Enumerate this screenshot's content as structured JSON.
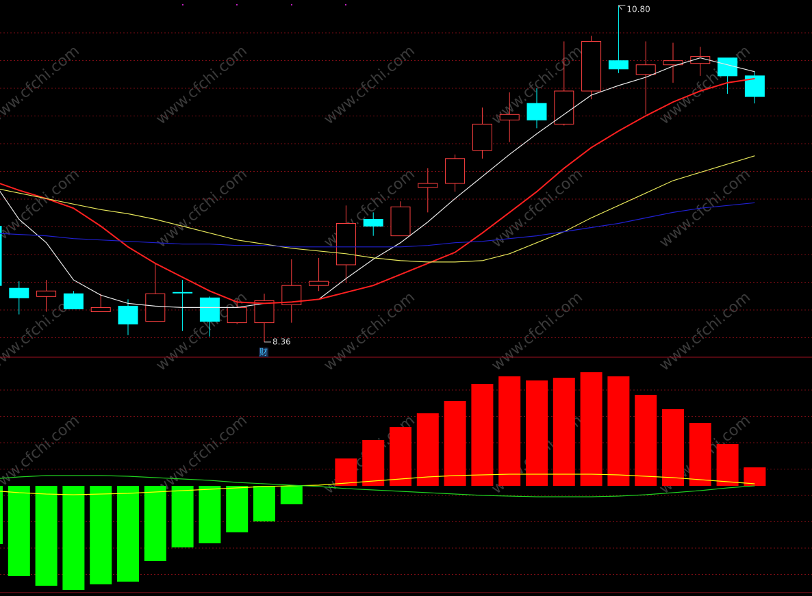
{
  "watermark": "www.cfchi.com",
  "chart_data": [
    {
      "type": "candlestick",
      "ylim": [
        8.25,
        10.84
      ],
      "grid": true,
      "up_color": "#ff4040",
      "down_color": "#00ffff",
      "open": [
        9.2,
        8.75,
        8.69,
        8.71,
        8.58,
        8.62,
        8.51,
        8.72,
        8.68,
        8.5,
        8.5,
        8.63,
        8.77,
        8.92,
        9.25,
        9.13,
        9.48,
        9.51,
        9.75,
        9.97,
        10.09,
        9.94,
        10.18,
        10.4,
        10.3,
        10.37,
        10.38,
        10.42,
        10.29
      ],
      "high": [
        9.25,
        8.8,
        8.81,
        8.73,
        8.71,
        8.67,
        8.93,
        8.81,
        8.69,
        8.67,
        8.71,
        8.96,
        8.97,
        9.35,
        9.3,
        9.38,
        9.62,
        9.72,
        10.06,
        10.17,
        10.2,
        10.54,
        10.58,
        10.8,
        10.54,
        10.53,
        10.5,
        10.42,
        10.32
      ],
      "low": [
        8.77,
        8.56,
        8.58,
        8.6,
        8.58,
        8.41,
        8.51,
        8.44,
        8.4,
        8.49,
        8.36,
        8.5,
        8.73,
        8.79,
        9.13,
        9.13,
        9.3,
        9.45,
        9.69,
        9.81,
        9.91,
        9.93,
        10.12,
        10.31,
        10.01,
        10.24,
        10.29,
        10.16,
        10.09
      ],
      "close": [
        8.77,
        8.68,
        8.73,
        8.6,
        8.61,
        8.49,
        8.71,
        8.72,
        8.51,
        8.61,
        8.66,
        8.77,
        8.8,
        9.22,
        9.2,
        9.34,
        9.51,
        9.69,
        9.94,
        10.01,
        9.97,
        10.18,
        10.54,
        10.34,
        10.37,
        10.4,
        10.43,
        10.29,
        10.14
      ],
      "series": [
        {
          "color": "#e8e8e8",
          "values": [
            9.54,
            9.25,
            9.08,
            8.81,
            8.7,
            8.64,
            8.62,
            8.61,
            8.61,
            8.61,
            8.64,
            8.65,
            8.67,
            8.82,
            8.96,
            9.08,
            9.23,
            9.4,
            9.56,
            9.72,
            9.87,
            10.01,
            10.15,
            10.22,
            10.28,
            10.36,
            10.42,
            10.37,
            10.32
          ]
        },
        {
          "color": "#ff2020",
          "values": [
            9.53,
            9.46,
            9.4,
            9.33,
            9.2,
            9.05,
            8.93,
            8.83,
            8.73,
            8.65,
            8.64,
            8.65,
            8.67,
            8.72,
            8.77,
            8.85,
            8.93,
            9.01,
            9.15,
            9.3,
            9.45,
            9.62,
            9.77,
            9.89,
            10.0,
            10.1,
            10.18,
            10.24,
            10.27
          ]
        },
        {
          "color": "#e6e65a",
          "values": [
            9.48,
            9.44,
            9.4,
            9.36,
            9.32,
            9.29,
            9.25,
            9.2,
            9.15,
            9.1,
            9.07,
            9.04,
            9.02,
            9.0,
            8.97,
            8.95,
            8.94,
            8.94,
            8.95,
            9.0,
            9.08,
            9.16,
            9.26,
            9.35,
            9.44,
            9.53,
            9.59,
            9.65,
            9.71
          ]
        },
        {
          "color": "#2020d0",
          "values": [
            9.15,
            9.14,
            9.13,
            9.11,
            9.1,
            9.09,
            9.08,
            9.07,
            9.07,
            9.06,
            9.06,
            9.05,
            9.05,
            9.05,
            9.05,
            9.05,
            9.06,
            9.08,
            9.09,
            9.11,
            9.13,
            9.16,
            9.19,
            9.22,
            9.26,
            9.3,
            9.33,
            9.35,
            9.37
          ]
        }
      ],
      "annotations": [
        {
          "text": "10.80",
          "value": 10.8
        },
        {
          "text": "8.36",
          "value": 8.36
        }
      ],
      "marker": "财"
    },
    {
      "type": "bar",
      "ylim": [
        -0.156,
        0.188
      ],
      "grid": true,
      "up_color": "#ff0000",
      "down_color": "#00ff00",
      "values": [
        -0.085,
        -0.132,
        -0.146,
        -0.152,
        -0.144,
        -0.14,
        -0.11,
        -0.09,
        -0.084,
        -0.068,
        -0.052,
        -0.027,
        0,
        0.04,
        0.067,
        0.086,
        0.106,
        0.124,
        0.149,
        0.16,
        0.154,
        0.158,
        0.166,
        0.16,
        0.133,
        0.112,
        0.092,
        0.061,
        0.027
      ],
      "series": [
        {
          "color": "#ffff00",
          "values": [
            -0.007,
            -0.01,
            -0.012,
            -0.013,
            -0.012,
            -0.011,
            -0.009,
            -0.007,
            -0.005,
            -0.003,
            -0.001,
            0,
            0.001,
            0.004,
            0.007,
            0.01,
            0.013,
            0.015,
            0.016,
            0.017,
            0.017,
            0.017,
            0.017,
            0.016,
            0.014,
            0.012,
            0.009,
            0.006,
            0.003
          ]
        },
        {
          "color": "#20d020",
          "values": [
            0.01,
            0.013,
            0.015,
            0.015,
            0.015,
            0.014,
            0.012,
            0.01,
            0.008,
            0.005,
            0.003,
            0.001,
            -0.001,
            -0.004,
            -0.006,
            -0.008,
            -0.01,
            -0.012,
            -0.014,
            -0.015,
            -0.016,
            -0.016,
            -0.016,
            -0.015,
            -0.013,
            -0.01,
            -0.007,
            -0.003,
            0
          ]
        }
      ]
    }
  ]
}
